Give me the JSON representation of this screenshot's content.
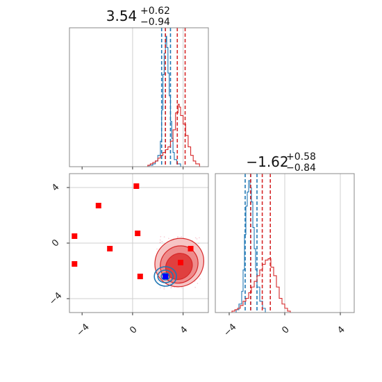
{
  "chart_data": [
    {
      "type": "histogram",
      "panel": "marginal-x",
      "title": {
        "main": "3.54",
        "sup": "+0.62",
        "sub": "−0.94"
      },
      "grid": true,
      "xlim": [
        -5,
        6
      ],
      "series": [
        {
          "name": "",
          "color": "#1f77b4",
          "quantiles": [
            2.3,
            2.6,
            3.0
          ],
          "bins": [
            [
              1.0,
              0
            ],
            [
              1.3,
              0.01
            ],
            [
              1.6,
              0.02
            ],
            [
              1.8,
              0.04
            ],
            [
              2.0,
              0.08
            ],
            [
              2.2,
              0.18
            ],
            [
              2.3,
              0.4
            ],
            [
              2.4,
              0.65
            ],
            [
              2.5,
              0.8
            ],
            [
              2.6,
              0.88
            ],
            [
              2.65,
              0.92
            ],
            [
              2.7,
              0.84
            ],
            [
              2.8,
              0.66
            ],
            [
              2.9,
              0.5
            ],
            [
              3.0,
              0.32
            ],
            [
              3.1,
              0.2
            ],
            [
              3.2,
              0.1
            ],
            [
              3.3,
              0.05
            ],
            [
              3.5,
              0.02
            ],
            [
              3.8,
              0.0
            ]
          ]
        },
        {
          "name": "",
          "color": "#d62728",
          "quantiles": [
            2.6,
            3.54,
            4.16
          ],
          "bins": [
            [
              1.0,
              0.0
            ],
            [
              1.2,
              0.01
            ],
            [
              1.4,
              0.02
            ],
            [
              1.6,
              0.03
            ],
            [
              1.8,
              0.04
            ],
            [
              2.0,
              0.06
            ],
            [
              2.2,
              0.08
            ],
            [
              2.4,
              0.1
            ],
            [
              2.6,
              0.12
            ],
            [
              2.8,
              0.14
            ],
            [
              3.0,
              0.18
            ],
            [
              3.2,
              0.26
            ],
            [
              3.4,
              0.38
            ],
            [
              3.6,
              0.44
            ],
            [
              3.7,
              0.42
            ],
            [
              3.8,
              0.36
            ],
            [
              4.0,
              0.3
            ],
            [
              4.2,
              0.22
            ],
            [
              4.4,
              0.14
            ],
            [
              4.6,
              0.08
            ],
            [
              4.8,
              0.04
            ],
            [
              5.0,
              0.02
            ],
            [
              5.3,
              0.0
            ]
          ]
        }
      ]
    },
    {
      "type": "scatter",
      "panel": "joint",
      "grid": true,
      "xlim": [
        -5,
        6
      ],
      "ylim": [
        -5,
        5
      ],
      "xticks": [
        "−4",
        "0",
        "4"
      ],
      "yticks": [
        "−4",
        "0",
        "4"
      ],
      "red_squares": [
        [
          0.3,
          4.1
        ],
        [
          -2.7,
          2.7
        ],
        [
          -4.6,
          0.5
        ],
        [
          0.4,
          0.7
        ],
        [
          -1.8,
          -0.4
        ],
        [
          -4.6,
          -1.5
        ],
        [
          0.6,
          -2.4
        ],
        [
          4.6,
          -0.4
        ],
        [
          3.8,
          -1.4
        ]
      ],
      "blue_square": [
        2.6,
        -2.4
      ],
      "red_contour_center": [
        3.7,
        -1.4
      ],
      "blue_contour_center": [
        2.6,
        -2.4
      ]
    },
    {
      "type": "histogram",
      "panel": "marginal-y",
      "title": {
        "main": "−1.62",
        "sup": "+0.58",
        "sub": "−0.84"
      },
      "grid": true,
      "xlim": [
        -5,
        5
      ],
      "xticks": [
        "−4",
        "0",
        "4"
      ],
      "series": [
        {
          "name": "",
          "color": "#1f77b4",
          "quantiles": [
            -2.85,
            -2.45,
            -2.0
          ],
          "bins": [
            [
              -3.8,
              0.0
            ],
            [
              -3.5,
              0.02
            ],
            [
              -3.3,
              0.06
            ],
            [
              -3.1,
              0.15
            ],
            [
              -3.0,
              0.3
            ],
            [
              -2.9,
              0.55
            ],
            [
              -2.8,
              0.75
            ],
            [
              -2.7,
              0.85
            ],
            [
              -2.6,
              0.93
            ],
            [
              -2.5,
              0.88
            ],
            [
              -2.4,
              0.78
            ],
            [
              -2.3,
              0.6
            ],
            [
              -2.2,
              0.45
            ],
            [
              -2.1,
              0.3
            ],
            [
              -2.0,
              0.18
            ],
            [
              -1.8,
              0.08
            ],
            [
              -1.6,
              0.03
            ],
            [
              -1.4,
              0.0
            ]
          ]
        },
        {
          "name": "",
          "color": "#d62728",
          "quantiles": [
            -2.46,
            -1.62,
            -1.04
          ],
          "bins": [
            [
              -4.0,
              0.0
            ],
            [
              -3.8,
              0.01
            ],
            [
              -3.6,
              0.02
            ],
            [
              -3.4,
              0.03
            ],
            [
              -3.2,
              0.05
            ],
            [
              -3.0,
              0.08
            ],
            [
              -2.8,
              0.1
            ],
            [
              -2.6,
              0.14
            ],
            [
              -2.4,
              0.18
            ],
            [
              -2.2,
              0.22
            ],
            [
              -2.0,
              0.26
            ],
            [
              -1.8,
              0.3
            ],
            [
              -1.6,
              0.34
            ],
            [
              -1.4,
              0.37
            ],
            [
              -1.2,
              0.38
            ],
            [
              -1.0,
              0.32
            ],
            [
              -0.8,
              0.26
            ],
            [
              -0.6,
              0.18
            ],
            [
              -0.4,
              0.1
            ],
            [
              -0.2,
              0.06
            ],
            [
              0.0,
              0.03
            ],
            [
              0.2,
              0.01
            ],
            [
              0.4,
              0.0
            ]
          ]
        }
      ]
    }
  ]
}
